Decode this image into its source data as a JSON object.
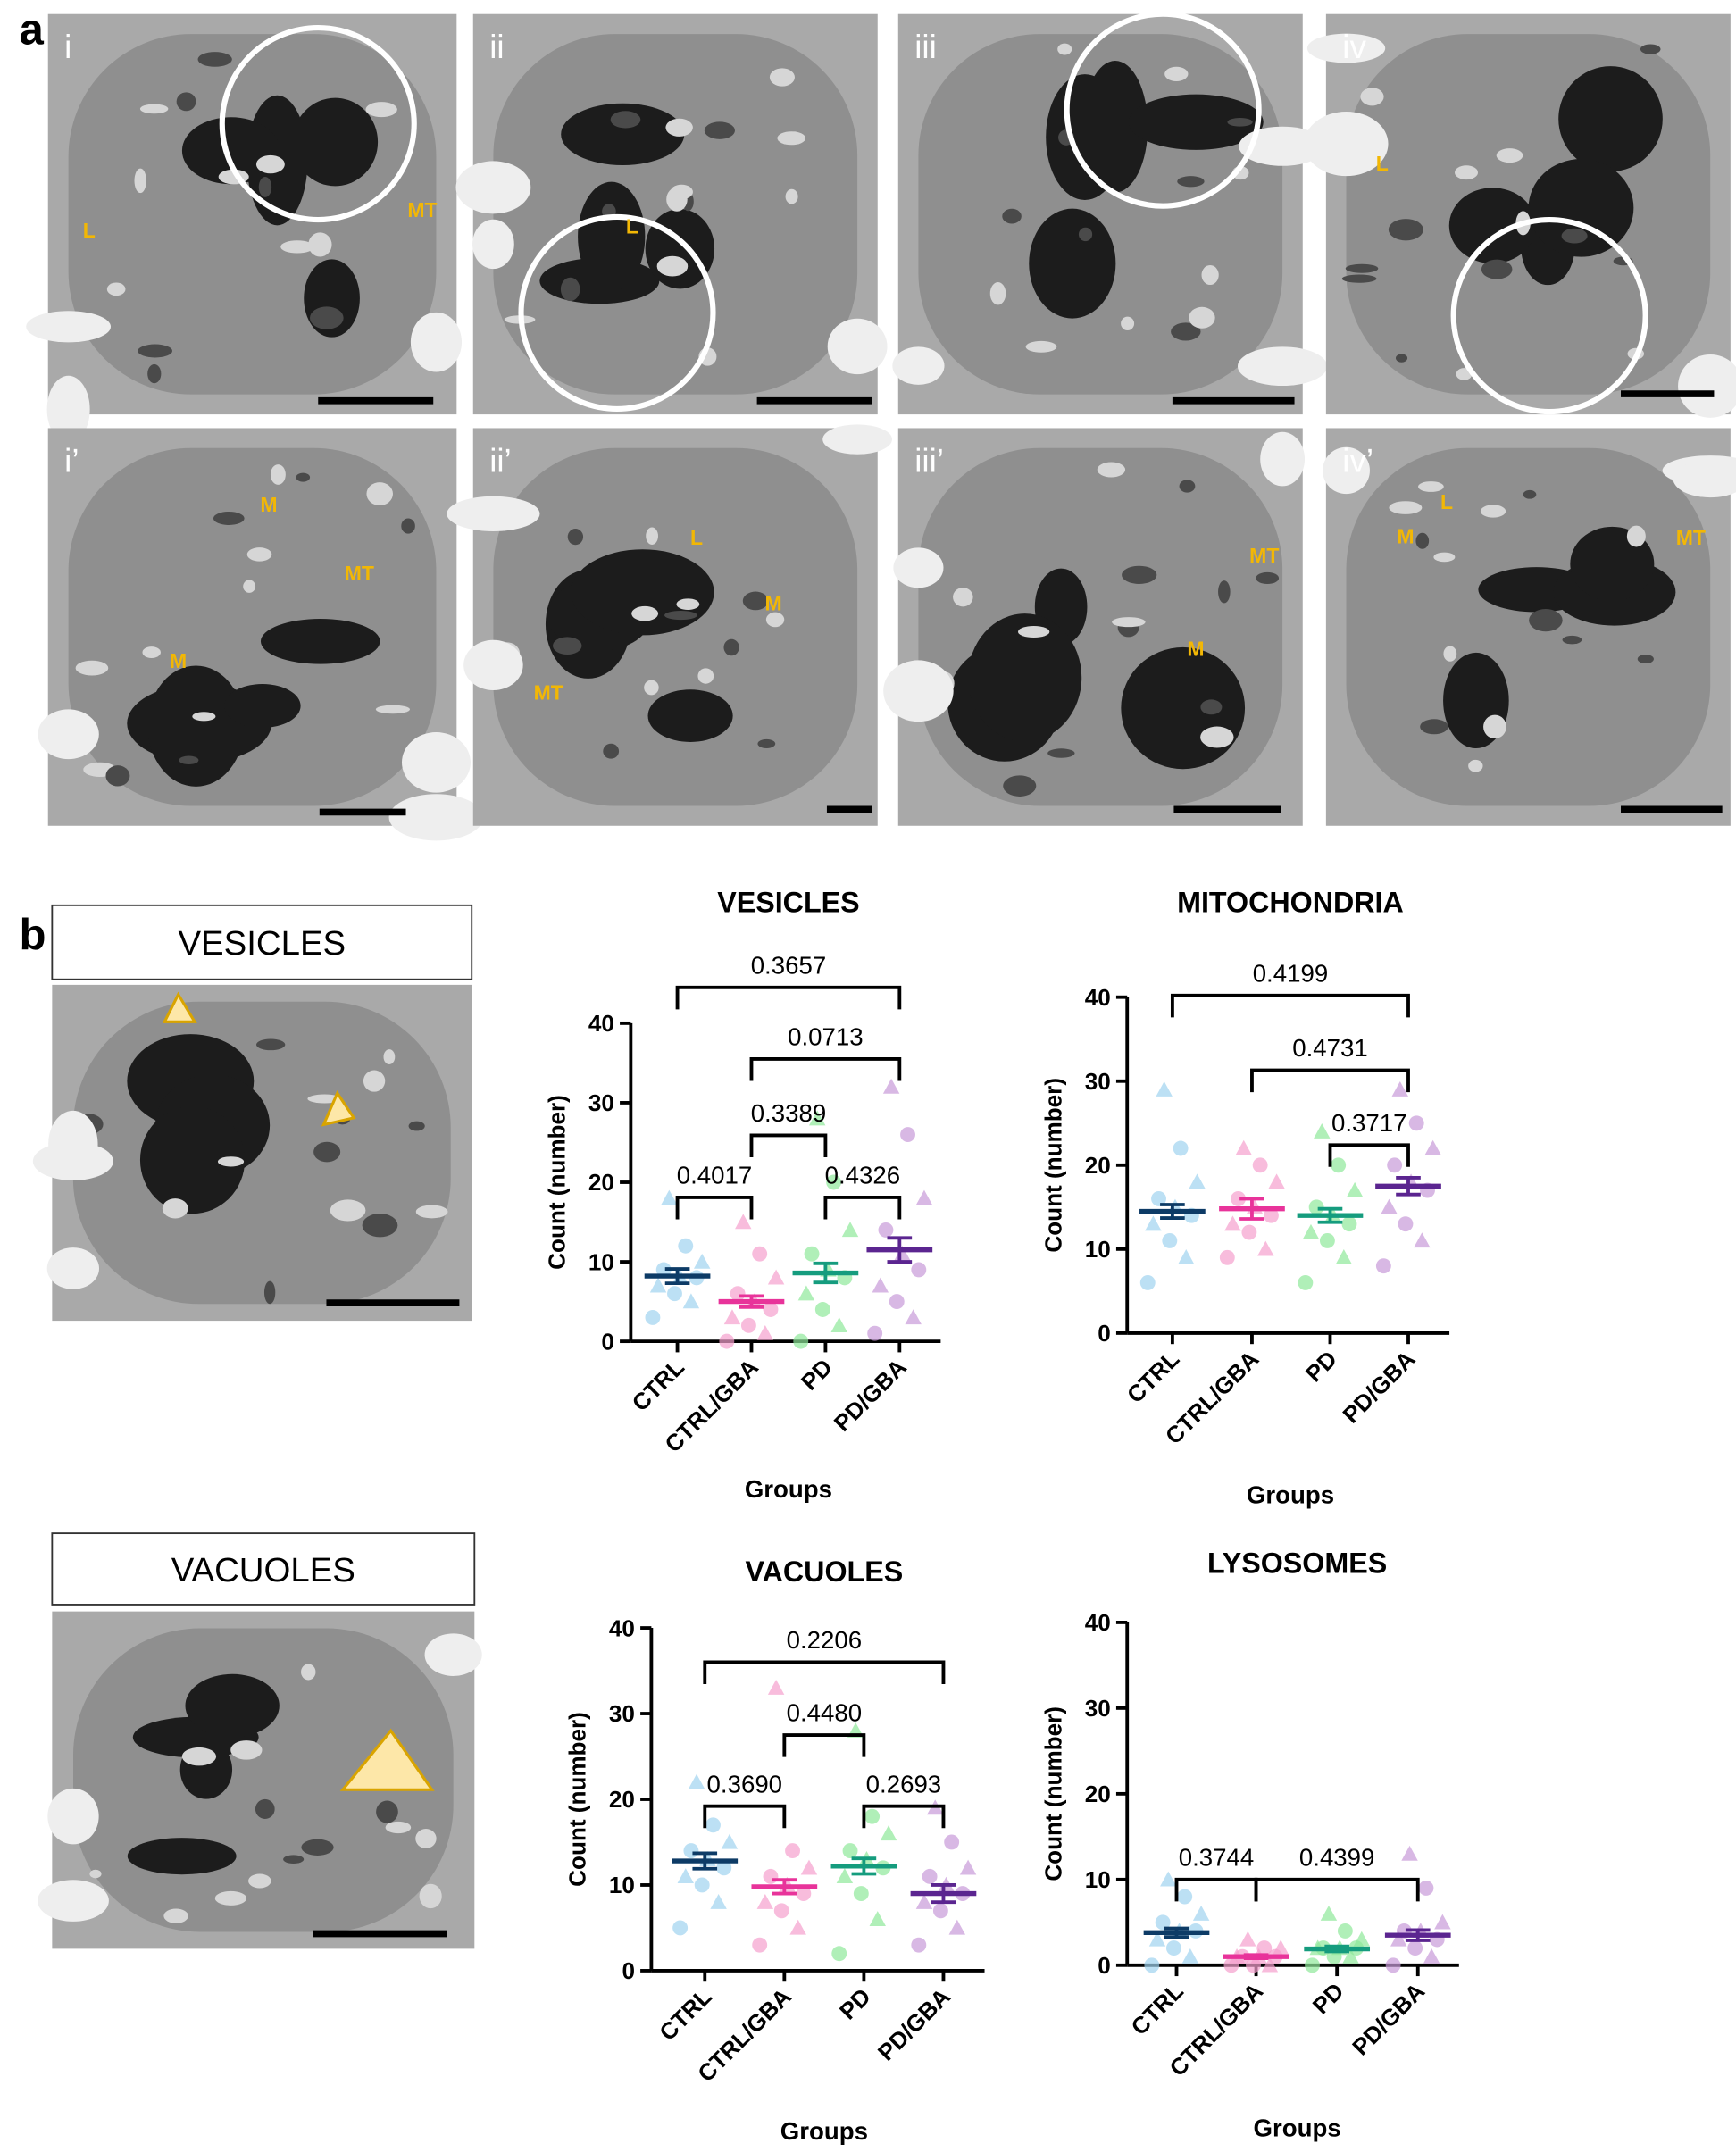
{
  "figure": {
    "panel_a": {
      "letter": "a",
      "images": [
        {
          "label": "i",
          "annotations": [
            "L",
            "MT"
          ]
        },
        {
          "label": "ii",
          "annotations": [
            "L"
          ]
        },
        {
          "label": "iii",
          "annotations": []
        },
        {
          "label": "iv",
          "annotations": [
            "L"
          ]
        },
        {
          "label": "i’",
          "annotations": [
            "M",
            "MT",
            "M"
          ]
        },
        {
          "label": "ii’",
          "annotations": [
            "L",
            "M",
            "MT"
          ]
        },
        {
          "label": "iii’",
          "annotations": [
            "MT",
            "M"
          ]
        },
        {
          "label": "iv’",
          "annotations": [
            "L",
            "M",
            "MT"
          ]
        }
      ]
    },
    "panel_b": {
      "letter": "b",
      "insets": [
        {
          "label": "VESICLES"
        },
        {
          "label": "VACUOLES"
        }
      ]
    }
  },
  "chart_data": [
    {
      "type": "scatter",
      "title": "VESICLES",
      "x_label": "Groups",
      "y_label": "Count (number)",
      "categories": [
        "CTRL",
        "CTRL/GBA",
        "PD",
        "PD/GBA"
      ],
      "colors": [
        "#0d3b66",
        "#e8339a",
        "#159c7e",
        "#5b2590"
      ],
      "point_colors": [
        "#9fd3f0",
        "#f59fcd",
        "#8fe89a",
        "#c79ad9"
      ],
      "ylim": [
        0,
        40
      ],
      "yticks": [
        0,
        10,
        20,
        30,
        40
      ],
      "means": [
        8.2,
        5,
        8.6,
        11.5
      ],
      "sems": [
        0.9,
        0.7,
        1.2,
        1.5
      ],
      "points": [
        [
          3,
          5,
          6,
          7,
          8,
          8,
          9,
          10,
          12,
          18
        ],
        [
          0,
          1,
          2,
          3,
          4,
          5,
          6,
          8,
          11,
          15
        ],
        [
          0,
          2,
          4,
          6,
          8,
          9,
          11,
          14,
          20,
          28
        ],
        [
          1,
          3,
          5,
          7,
          9,
          11,
          14,
          18,
          26,
          32
        ]
      ],
      "comparisons": [
        {
          "pair": [
            0,
            1
          ],
          "level": 18.1,
          "label": "0.4017"
        },
        {
          "pair": [
            2,
            3
          ],
          "level": 18.1,
          "label": "0.4326"
        },
        {
          "pair": [
            1,
            2
          ],
          "level": 25.9,
          "label": "0.3389"
        },
        {
          "pair": [
            1,
            3
          ],
          "level": 35.5,
          "label": "0.0713"
        },
        {
          "pair": [
            0,
            3
          ],
          "level": 44.5,
          "label": "0.3657"
        }
      ]
    },
    {
      "type": "scatter",
      "title": "MITOCHONDRIA",
      "x_label": "Groups",
      "y_label": "Count (number)",
      "categories": [
        "CTRL",
        "CTRL/GBA",
        "PD",
        "PD/GBA"
      ],
      "colors": [
        "#0d3b66",
        "#e8339a",
        "#159c7e",
        "#5b2590"
      ],
      "point_colors": [
        "#9fd3f0",
        "#f59fcd",
        "#8fe89a",
        "#c79ad9"
      ],
      "ylim": [
        0,
        40
      ],
      "yticks": [
        0,
        10,
        20,
        30,
        40
      ],
      "means": [
        14.5,
        14.8,
        14,
        17.5
      ],
      "sems": [
        0.8,
        1.2,
        0.8,
        1.0
      ],
      "points": [
        [
          6,
          9,
          11,
          13,
          14,
          15,
          16,
          18,
          22,
          29
        ],
        [
          9,
          10,
          12,
          13,
          14,
          15,
          16,
          18,
          20,
          22
        ],
        [
          6,
          9,
          11,
          12,
          13,
          14,
          15,
          17,
          20,
          24
        ],
        [
          8,
          11,
          13,
          15,
          17,
          18,
          20,
          22,
          25,
          29
        ]
      ],
      "comparisons": [
        {
          "pair": [
            2,
            3
          ],
          "level": 22.4,
          "label": "0.3717"
        },
        {
          "pair": [
            1,
            3
          ],
          "level": 31.3,
          "label": "0.4731"
        },
        {
          "pair": [
            0,
            3
          ],
          "level": 40.2,
          "label": "0.4199"
        }
      ]
    },
    {
      "type": "scatter",
      "title": "VACUOLES",
      "x_label": "Groups",
      "y_label": "Count (number)",
      "categories": [
        "CTRL",
        "CTRL/GBA",
        "PD",
        "PD/GBA"
      ],
      "colors": [
        "#0d3b66",
        "#e8339a",
        "#159c7e",
        "#5b2590"
      ],
      "point_colors": [
        "#9fd3f0",
        "#f59fcd",
        "#8fe89a",
        "#c79ad9"
      ],
      "ylim": [
        0,
        40
      ],
      "yticks": [
        0,
        10,
        20,
        30,
        40
      ],
      "means": [
        12.8,
        9.8,
        12.2,
        9.0
      ],
      "sems": [
        0.9,
        0.8,
        0.9,
        1.0
      ],
      "points": [
        [
          5,
          8,
          10,
          11,
          12,
          13,
          14,
          15,
          17,
          22
        ],
        [
          3,
          5,
          7,
          8,
          9,
          10,
          11,
          12,
          14,
          33
        ],
        [
          2,
          6,
          9,
          11,
          12,
          13,
          14,
          16,
          18,
          28
        ],
        [
          3,
          5,
          7,
          8,
          9,
          10,
          11,
          12,
          15,
          19
        ]
      ],
      "comparisons": [
        {
          "pair": [
            0,
            1
          ],
          "level": 19.2,
          "label": "0.3690"
        },
        {
          "pair": [
            2,
            3
          ],
          "level": 19.2,
          "label": "0.2693"
        },
        {
          "pair": [
            1,
            2
          ],
          "level": 27.5,
          "label": "0.4480"
        },
        {
          "pair": [
            0,
            3
          ],
          "level": 36,
          "label": "0.2206"
        }
      ]
    },
    {
      "type": "scatter",
      "title": "LYSOSOMES",
      "x_label": "Groups",
      "y_label": "Count (number)",
      "categories": [
        "CTRL",
        "CTRL/GBA",
        "PD",
        "PD/GBA"
      ],
      "colors": [
        "#0d3b66",
        "#e8339a",
        "#159c7e",
        "#5b2590"
      ],
      "point_colors": [
        "#9fd3f0",
        "#f59fcd",
        "#8fe89a",
        "#c79ad9"
      ],
      "ylim": [
        0,
        40
      ],
      "yticks": [
        0,
        10,
        20,
        30,
        40
      ],
      "means": [
        3.8,
        1.0,
        1.9,
        3.5
      ],
      "sems": [
        0.5,
        0.2,
        0.3,
        0.6
      ],
      "points": [
        [
          0,
          1,
          2,
          3,
          4,
          4,
          5,
          6,
          8,
          10
        ],
        [
          0,
          0,
          0,
          1,
          1,
          1,
          1,
          2,
          2,
          3
        ],
        [
          0,
          1,
          1,
          2,
          2,
          2,
          2,
          3,
          4,
          6
        ],
        [
          0,
          1,
          2,
          3,
          3,
          4,
          4,
          5,
          9,
          13
        ]
      ],
      "comparisons": [
        {
          "pair": [
            0,
            1
          ],
          "level": 10,
          "label": "0.3744"
        },
        {
          "pair": [
            1,
            3
          ],
          "level": 10,
          "label": "0.4399"
        }
      ]
    }
  ]
}
